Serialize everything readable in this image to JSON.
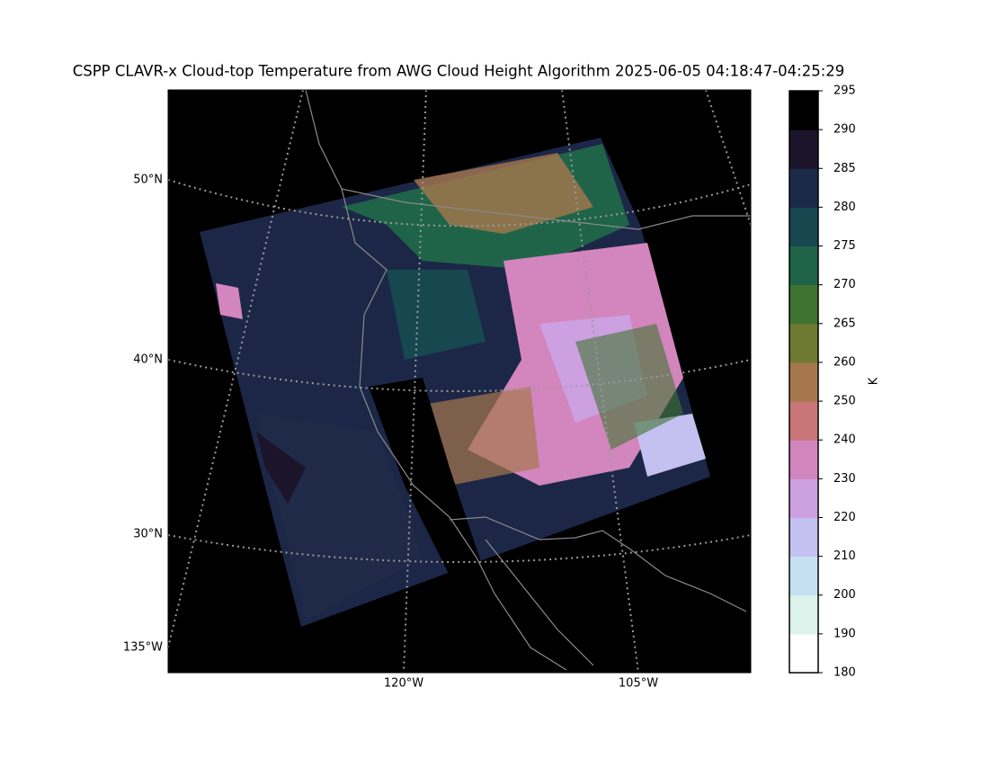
{
  "title": "CSPP CLAVR-x Cloud-top Temperature from AWG Cloud Height Algorithm 2025-06-05 04:18:47-04:25:29",
  "map": {
    "lat_labels": [
      "50°N",
      "40°N",
      "30°N"
    ],
    "lon_labels": [
      "135°W",
      "120°W",
      "105°W"
    ]
  },
  "colorbar": {
    "label": "K",
    "ticks": [
      180,
      190,
      200,
      210,
      220,
      230,
      240,
      250,
      260,
      265,
      270,
      275,
      280,
      285,
      290,
      295
    ],
    "colors": [
      "#ffffff",
      "#ddf3ec",
      "#c5e0f0",
      "#c4c1f1",
      "#cda0e2",
      "#d385bd",
      "#c97679",
      "#a6774d",
      "#6e7a31",
      "#3f7430",
      "#1f6448",
      "#17474f",
      "#1c2a4a",
      "#1c142b",
      "#000000"
    ]
  }
}
